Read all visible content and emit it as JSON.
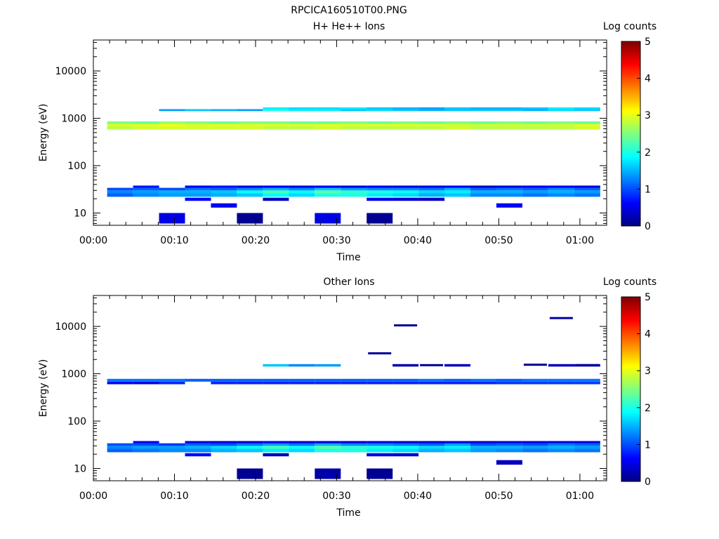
{
  "figure_title": "RPCICA160510T00.PNG",
  "colors": {
    "colormap": [
      "#00007f",
      "#0000ff",
      "#007fff",
      "#00ffff",
      "#7fff7f",
      "#ffff00",
      "#ff7f00",
      "#ff0000",
      "#7f0000"
    ]
  },
  "chart_data": [
    {
      "type": "heatmap",
      "title": "H+ He++ Ions",
      "xlabel": "Time",
      "ylabel": "Energy (eV)",
      "x_ticks": [
        "00:00",
        "00:10",
        "00:20",
        "00:30",
        "00:40",
        "00:50",
        "01:00"
      ],
      "y_ticks": [
        "10",
        "100",
        "1000",
        "10000"
      ],
      "xlim_minutes": [
        0,
        63.3
      ],
      "ylim_eV": [
        5.5,
        45000
      ],
      "y_scale": "log",
      "colorbar": {
        "label": "Log counts",
        "ticks": [
          "0",
          "1",
          "2",
          "3",
          "4",
          "5"
        ],
        "range": [
          0,
          5
        ]
      },
      "time_bin_starts_min": [
        1.7,
        4.9,
        8.1,
        11.3,
        14.5,
        17.7,
        20.9,
        24.1,
        27.3,
        30.5,
        33.7,
        36.9,
        40.1,
        43.3,
        46.5,
        49.7,
        52.9,
        56.1,
        59.3
      ],
      "time_bin_width_min": 3.2,
      "bands": [
        {
          "e_lo": 580,
          "e_hi": 680,
          "levels": [
            2.8,
            2.9,
            2.9,
            2.9,
            2.9,
            2.9,
            2.8,
            2.8,
            2.9,
            2.8,
            2.8,
            2.8,
            2.8,
            2.9,
            2.8,
            2.8,
            2.8,
            2.8,
            2.9
          ]
        },
        {
          "e_lo": 680,
          "e_hi": 760,
          "levels": [
            3.0,
            3.0,
            3.1,
            3.0,
            3.0,
            3.0,
            3.0,
            3.0,
            3.0,
            3.0,
            3.0,
            3.0,
            3.0,
            2.9,
            2.9,
            2.9,
            2.9,
            2.9,
            3.0
          ]
        },
        {
          "e_lo": 760,
          "e_hi": 860,
          "levels": [
            2.5,
            2.4,
            2.6,
            2.5,
            2.4,
            2.5,
            2.5,
            2.4,
            2.4,
            2.5,
            2.4,
            2.5,
            2.4,
            2.5,
            2.4,
            2.5,
            2.4,
            2.5,
            2.4
          ]
        },
        {
          "e_lo": 1420,
          "e_hi": 1560,
          "levels": [
            null,
            null,
            1.4,
            1.6,
            1.5,
            1.4,
            2.0,
            1.8,
            1.8,
            1.6,
            1.7,
            1.6,
            1.5,
            1.6,
            1.6,
            1.6,
            1.5,
            1.7,
            1.6
          ]
        },
        {
          "e_lo": 1560,
          "e_hi": 1700,
          "levels": [
            null,
            null,
            null,
            null,
            null,
            null,
            1.8,
            1.7,
            1.7,
            1.8,
            1.6,
            1.5,
            1.4,
            1.6,
            1.5,
            1.5,
            1.6,
            1.8,
            1.7
          ]
        },
        {
          "e_lo": 22,
          "e_hi": 26,
          "levels": [
            1.1,
            1.3,
            1.4,
            1.4,
            1.5,
            1.6,
            1.9,
            1.7,
            2.0,
            2.0,
            1.8,
            1.7,
            1.5,
            1.6,
            1.3,
            1.3,
            1.2,
            1.3,
            1.2
          ]
        },
        {
          "e_lo": 26,
          "e_hi": 30,
          "levels": [
            1.3,
            1.4,
            1.5,
            1.5,
            1.6,
            1.9,
            2.2,
            1.9,
            2.3,
            2.1,
            2.0,
            1.9,
            1.7,
            1.8,
            1.5,
            1.5,
            1.4,
            1.5,
            1.4
          ]
        },
        {
          "e_lo": 30,
          "e_hi": 34,
          "levels": [
            1.0,
            1.1,
            1.0,
            1.2,
            1.1,
            1.3,
            1.5,
            1.3,
            1.6,
            1.4,
            1.3,
            1.3,
            1.2,
            1.5,
            1.1,
            1.2,
            1.1,
            1.3,
            1.1
          ]
        },
        {
          "e_lo": 34,
          "e_hi": 38,
          "levels": [
            null,
            0.7,
            null,
            0.6,
            0.7,
            0.5,
            0.6,
            0.5,
            0.6,
            0.5,
            0.6,
            0.5,
            0.5,
            0.6,
            0.4,
            0.5,
            0.6,
            0.6,
            0.5
          ]
        },
        {
          "e_lo": 18,
          "e_hi": 21,
          "levels": [
            null,
            null,
            null,
            0.6,
            null,
            null,
            0.3,
            null,
            null,
            null,
            0.5,
            0.4,
            0.3,
            null,
            null,
            null,
            null,
            null,
            null
          ]
        },
        {
          "e_lo": 13,
          "e_hi": 16,
          "levels": [
            null,
            null,
            null,
            null,
            0.6,
            null,
            null,
            null,
            null,
            null,
            null,
            null,
            null,
            null,
            null,
            0.6,
            null,
            null,
            null
          ]
        },
        {
          "e_lo": 6,
          "e_hi": 10,
          "levels": [
            null,
            null,
            0.5,
            null,
            null,
            0.1,
            null,
            null,
            0.5,
            null,
            0.1,
            null,
            null,
            null,
            null,
            null,
            null,
            null,
            null
          ]
        }
      ]
    },
    {
      "type": "heatmap",
      "title": "Other Ions",
      "xlabel": "Time",
      "ylabel": "Energy (eV)",
      "x_ticks": [
        "00:00",
        "00:10",
        "00:20",
        "00:30",
        "00:40",
        "00:50",
        "01:00"
      ],
      "y_ticks": [
        "10",
        "100",
        "1000",
        "10000"
      ],
      "xlim_minutes": [
        0,
        63.3
      ],
      "ylim_eV": [
        5.5,
        45000
      ],
      "y_scale": "log",
      "colorbar": {
        "label": "Log counts",
        "ticks": [
          "0",
          "1",
          "2",
          "3",
          "4",
          "5"
        ],
        "range": [
          0,
          5
        ]
      },
      "time_bin_starts_min": [
        1.7,
        4.9,
        8.1,
        11.3,
        14.5,
        17.7,
        20.9,
        24.1,
        27.3,
        30.5,
        33.7,
        36.9,
        40.1,
        43.3,
        46.5,
        49.7,
        52.9,
        56.1,
        59.3
      ],
      "time_bin_width_min": 3.2,
      "bands": [
        {
          "e_lo": 600,
          "e_hi": 680,
          "levels": [
            0.6,
            0.5,
            0.8,
            null,
            0.8,
            0.8,
            0.8,
            0.8,
            0.8,
            0.8,
            0.8,
            0.8,
            0.8,
            0.8,
            0.8,
            0.9,
            0.9,
            0.9,
            0.9
          ]
        },
        {
          "e_lo": 680,
          "e_hi": 780,
          "levels": [
            1.2,
            1.2,
            1.2,
            1.1,
            1.1,
            1.1,
            1.1,
            1.1,
            1.1,
            1.1,
            1.1,
            1.1,
            1.2,
            1.1,
            1.2,
            1.1,
            1.2,
            1.2,
            1.2
          ]
        },
        {
          "e_lo": 1420,
          "e_hi": 1600,
          "levels": [
            null,
            null,
            null,
            null,
            null,
            null,
            1.6,
            1.3,
            1.4,
            null,
            null,
            0.2,
            null,
            0.3,
            null,
            null,
            null,
            0.3,
            0.3
          ]
        },
        {
          "e_lo": 22,
          "e_hi": 26,
          "levels": [
            1.1,
            1.2,
            1.3,
            1.3,
            1.5,
            1.6,
            1.8,
            1.7,
            2.0,
            2.0,
            1.8,
            1.7,
            1.5,
            1.6,
            1.4,
            1.3,
            1.2,
            1.3,
            1.2
          ]
        },
        {
          "e_lo": 26,
          "e_hi": 30,
          "levels": [
            1.3,
            1.4,
            1.4,
            1.5,
            1.7,
            1.9,
            2.2,
            1.9,
            2.3,
            2.1,
            2.0,
            1.9,
            1.7,
            1.8,
            1.5,
            1.5,
            1.4,
            1.5,
            1.4
          ]
        },
        {
          "e_lo": 30,
          "e_hi": 34,
          "levels": [
            1.0,
            1.0,
            0.9,
            1.1,
            1.0,
            1.2,
            1.4,
            1.2,
            1.5,
            1.3,
            1.3,
            1.2,
            1.1,
            1.4,
            1.0,
            1.1,
            1.0,
            1.2,
            1.1
          ]
        },
        {
          "e_lo": 34,
          "e_hi": 38,
          "levels": [
            null,
            0.6,
            null,
            0.5,
            0.4,
            0.4,
            0.6,
            0.4,
            0.5,
            0.4,
            0.5,
            0.4,
            0.4,
            0.5,
            0.4,
            0.5,
            0.5,
            0.5,
            0.5
          ]
        },
        {
          "e_lo": 18,
          "e_hi": 21,
          "levels": [
            null,
            null,
            null,
            0.6,
            null,
            null,
            0.3,
            null,
            null,
            null,
            0.5,
            0.4,
            null,
            null,
            null,
            null,
            null,
            null,
            null
          ]
        },
        {
          "e_lo": 12,
          "e_hi": 15,
          "levels": [
            null,
            null,
            null,
            null,
            null,
            null,
            null,
            null,
            null,
            null,
            null,
            null,
            null,
            null,
            null,
            0.3,
            null,
            null,
            null
          ]
        },
        {
          "e_lo": 6,
          "e_hi": 10,
          "levels": [
            null,
            null,
            null,
            null,
            null,
            0.1,
            null,
            null,
            0.2,
            null,
            0.1,
            null,
            null,
            null,
            null,
            null,
            null,
            null,
            null
          ]
        }
      ],
      "lines": [
        {
          "bin": 11,
          "energy": 10500,
          "level": 0.1
        },
        {
          "bin": 17,
          "energy": 15000,
          "level": 0.2
        },
        {
          "bin": 10,
          "energy": 2700,
          "level": 0.1
        },
        {
          "bin": 16,
          "energy": 1550,
          "level": 0.1
        },
        {
          "bin": 18,
          "energy": 1520,
          "level": 0.1
        },
        {
          "bin": 12,
          "energy": 1520,
          "level": 0.1
        }
      ]
    }
  ]
}
